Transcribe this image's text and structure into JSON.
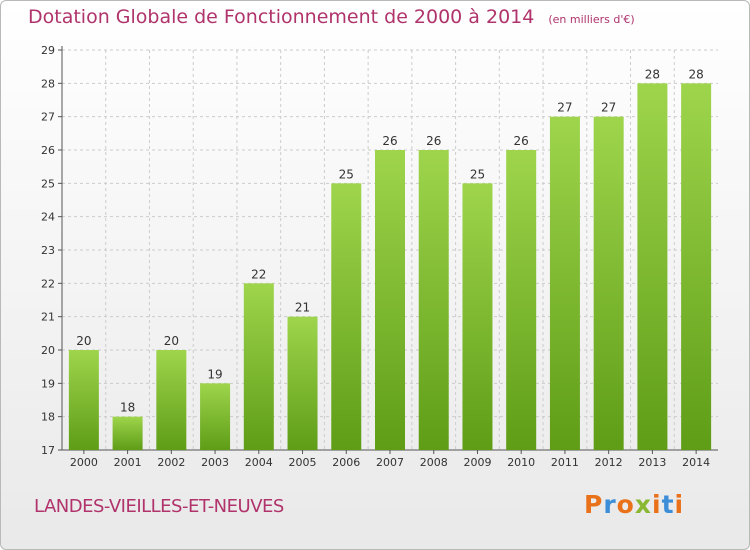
{
  "title": "Dotation Globale de Fonctionnement de 2000 à 2014",
  "subtitle": "(en milliers d'€)",
  "commune": "LANDES-VIEILLES-ET-NEUVES",
  "brand": {
    "text": "Proxiti",
    "colors": [
      "#e8711a",
      "#3c8ed8",
      "#e8711a",
      "#8ab833",
      "#e8711a",
      "#3c8ed8",
      "#e8711a"
    ]
  },
  "colors": {
    "bar_top": "#9ed54c",
    "bar_bottom": "#5f9d17",
    "title": "#b0336b",
    "grid": "#cccccc"
  },
  "chart_data": {
    "type": "bar",
    "categories": [
      "2000",
      "2001",
      "2002",
      "2003",
      "2004",
      "2005",
      "2006",
      "2007",
      "2008",
      "2009",
      "2010",
      "2011",
      "2012",
      "2013",
      "2014"
    ],
    "values": [
      20,
      18,
      20,
      19,
      22,
      21,
      25,
      26,
      26,
      25,
      26,
      27,
      27,
      28,
      28
    ],
    "ylim": [
      17,
      29
    ],
    "yticks": [
      17,
      18,
      19,
      20,
      21,
      22,
      23,
      24,
      25,
      26,
      27,
      28,
      29
    ],
    "grid": true,
    "xlabel": "",
    "ylabel": ""
  }
}
